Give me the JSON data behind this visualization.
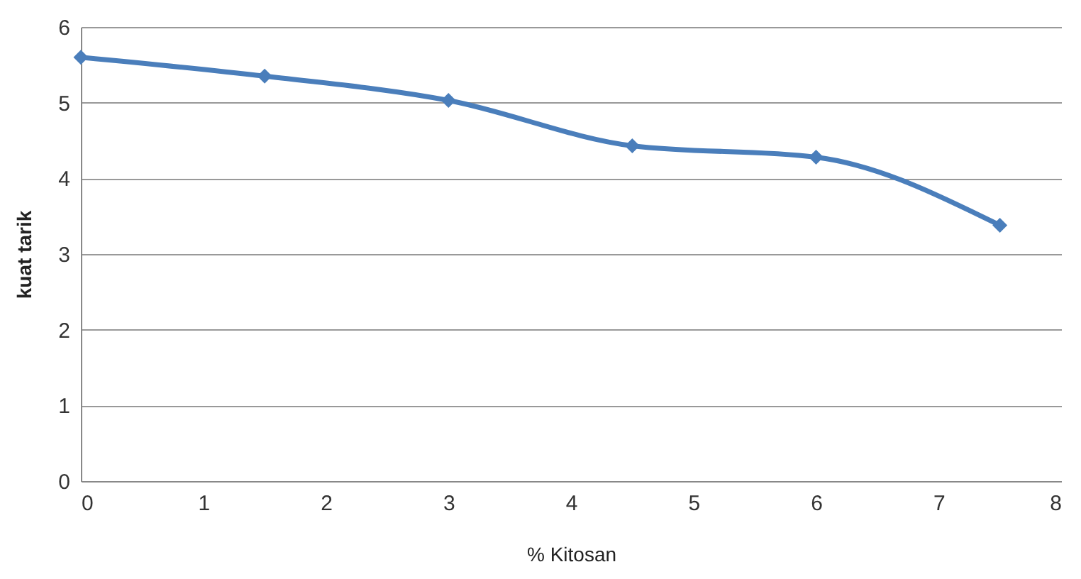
{
  "chart_data": {
    "type": "line",
    "xlabel": "% Kitosan",
    "ylabel": "kuat tarik",
    "x": [
      0,
      1.5,
      3,
      4.5,
      6,
      7.5
    ],
    "series": [
      {
        "color": "#4a7ebb",
        "values": [
          5.6,
          5.35,
          5.03,
          4.43,
          4.28,
          3.38
        ]
      }
    ],
    "xlim": [
      0,
      8
    ],
    "xticks": [
      0,
      1,
      2,
      3,
      4,
      5,
      6,
      7,
      8
    ],
    "ylim": [
      0,
      6
    ],
    "yticks": [
      0,
      1,
      2,
      3,
      4,
      5,
      6
    ],
    "grid": "y",
    "marker": "diamond",
    "line_style": "solid"
  }
}
